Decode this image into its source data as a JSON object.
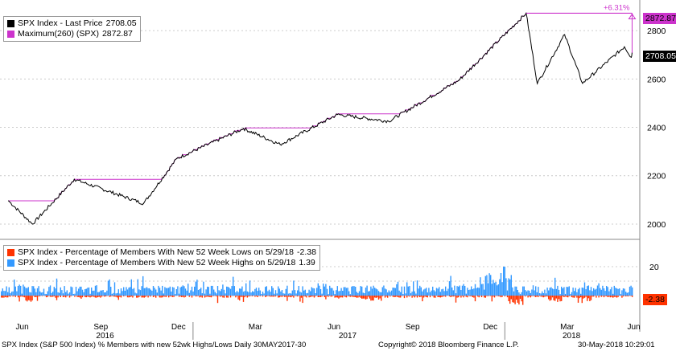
{
  "chart_data": [
    {
      "type": "line",
      "series": [
        {
          "name": "SPX Index - Last Price",
          "value_label": "2708.05",
          "color": "#000000"
        },
        {
          "name": "Maximum(260) (SPX)",
          "value_label": "2872.87",
          "color": "#cc33cc"
        }
      ],
      "key_points": [
        {
          "x": "2016-05-30",
          "y": 2096
        },
        {
          "x": "2016-06-27",
          "y": 2000
        },
        {
          "x": "2016-08-15",
          "y": 2185
        },
        {
          "x": "2016-11-04",
          "y": 2085
        },
        {
          "x": "2016-12-13",
          "y": 2271
        },
        {
          "x": "2017-03-01",
          "y": 2395
        },
        {
          "x": "2017-04-13",
          "y": 2329
        },
        {
          "x": "2017-06-19",
          "y": 2453
        },
        {
          "x": "2017-08-18",
          "y": 2425
        },
        {
          "x": "2017-11-08",
          "y": 2594
        },
        {
          "x": "2018-01-26",
          "y": 2872
        },
        {
          "x": "2018-02-08",
          "y": 2581
        },
        {
          "x": "2018-03-12",
          "y": 2783
        },
        {
          "x": "2018-04-02",
          "y": 2582
        },
        {
          "x": "2018-05-21",
          "y": 2733
        },
        {
          "x": "2018-05-29",
          "y": 2690
        },
        {
          "x": "2018-05-30",
          "y": 2708
        }
      ],
      "ylim": [
        1940,
        2910
      ],
      "yticks": [
        2000,
        2200,
        2400,
        2600,
        2800
      ],
      "annotation": "+6.31%",
      "last_price_tag": "2708.05",
      "max_tag": "2872.87"
    },
    {
      "type": "bar",
      "series": [
        {
          "name": "SPX Index - Percentage of Members With New 52 Week Lows on 5/29/18",
          "value_label": "-2.38",
          "color": "#ff3300"
        },
        {
          "name": "SPX Index - Percentage of Members With New 52 Week Highs on 5/29/18",
          "value_label": "1.39",
          "color": "#3399ff"
        }
      ],
      "yticks": [
        20,
        10
      ],
      "last_lows_tag": "-2.38",
      "last_highs_tag": "1.39"
    }
  ],
  "x_axis": {
    "months": [
      "Jun",
      "Sep",
      "Dec",
      "Mar",
      "Jun",
      "Sep",
      "Dec",
      "Mar",
      "Jun"
    ],
    "years": [
      "2016",
      "2017",
      "2018"
    ]
  },
  "footer": {
    "left": "SPX Index (S&P 500 Index) % Members with new 52wk Highs/Lows  Daily 30MAY2017-30",
    "center": "Copyright© 2018 Bloomberg Finance L.P.",
    "right": "30-May-2018 10:29:01"
  }
}
